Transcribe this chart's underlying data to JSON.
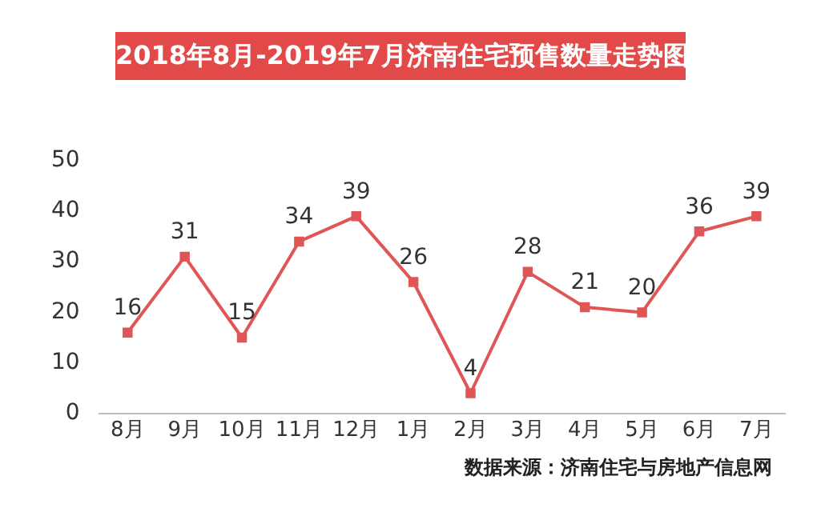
{
  "chart_data": {
    "type": "line",
    "title": "2018年8月-2019年7月济南住宅预售数量走势图",
    "categories": [
      "8月",
      "9月",
      "10月",
      "11月",
      "12月",
      "1月",
      "2月",
      "3月",
      "4月",
      "5月",
      "6月",
      "7月"
    ],
    "series": [
      {
        "color": "#e05555",
        "values": [
          16,
          31,
          15,
          34,
          39,
          26,
          4,
          28,
          21,
          20,
          36,
          39
        ]
      }
    ],
    "ylim": [
      0,
      50
    ],
    "yticks": [
      0,
      10,
      20,
      30,
      40,
      50
    ],
    "grid": false,
    "legend": false,
    "marker": "square",
    "line_style": "solid",
    "data_labels": true,
    "annotations": [
      "数据来源：济南住宅与房地产信息网"
    ]
  }
}
